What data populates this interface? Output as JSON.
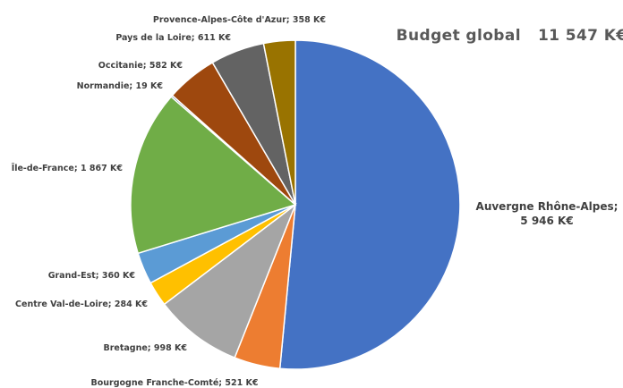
{
  "chart_data": {
    "type": "pie",
    "title_label": "Budget global",
    "title_value": "11 547 K€",
    "slices": [
      {
        "label": "Auvergne Rhône-Alpes",
        "value_text": "5 946 K€",
        "value": 5946,
        "color": "#4472C4"
      },
      {
        "label": "Bourgogne Franche-Comté",
        "value_text": "521 K€",
        "value": 521,
        "color": "#ED7D31"
      },
      {
        "label": "Bretagne",
        "value_text": "998 K€",
        "value": 998,
        "color": "#A5A5A5"
      },
      {
        "label": "Centre Val-de-Loire",
        "value_text": "284 K€",
        "value": 284,
        "color": "#FFC000"
      },
      {
        "label": "Grand-Est",
        "value_text": "360 K€",
        "value": 360,
        "color": "#5B9BD5"
      },
      {
        "label": "Île-de-France",
        "value_text": "1 867 K€",
        "value": 1867,
        "color": "#70AD47"
      },
      {
        "label": "Normandie",
        "value_text": "19 K€",
        "value": 19,
        "color": "#264478"
      },
      {
        "label": "Occitanie",
        "value_text": "582 K€",
        "value": 582,
        "color": "#9E480E"
      },
      {
        "label": "Pays de la Loire",
        "value_text": "611 K€",
        "value": 611,
        "color": "#636363"
      },
      {
        "label": "Provence-Alpes-Côte d'Azur",
        "value_text": "358 K€",
        "value": 358,
        "color": "#997300"
      }
    ]
  }
}
